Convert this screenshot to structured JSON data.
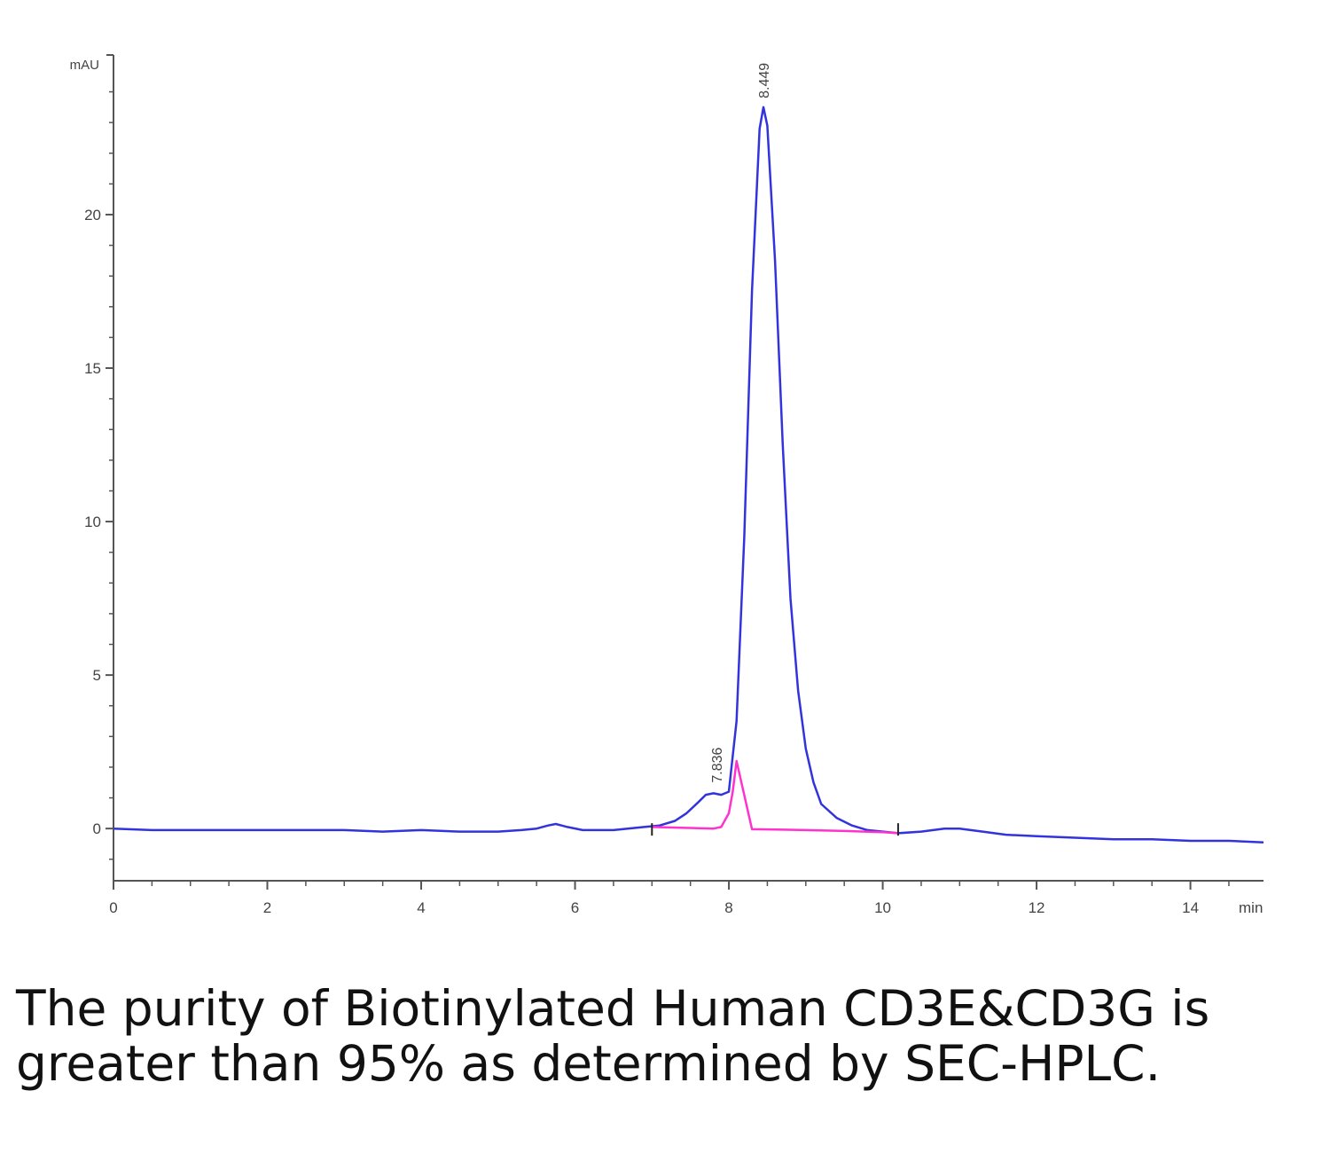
{
  "chart_data": {
    "type": "line",
    "title": "",
    "xlabel": "",
    "ylabel": "",
    "x_unit": "min",
    "y_unit": "mAU",
    "xlim": [
      0,
      14.95
    ],
    "ylim": [
      -1.7,
      25.2
    ],
    "x_ticks": [
      "0",
      "2",
      "4",
      "6",
      "8",
      "10",
      "12",
      "14"
    ],
    "y_ticks": [
      "0",
      "5",
      "10",
      "15",
      "20"
    ],
    "grid": false,
    "legend": "none",
    "peak_labels": [
      {
        "x": 7.836,
        "y": 1.2,
        "label": "7.836"
      },
      {
        "x": 8.449,
        "y": 23.5,
        "label": "8.449"
      }
    ],
    "series": [
      {
        "color": "#3333dd",
        "x": [
          0,
          0.5,
          1,
          1.5,
          2,
          2.5,
          3,
          3.5,
          4,
          4.5,
          5,
          5.3,
          5.5,
          5.65,
          5.75,
          5.9,
          6.1,
          6.5,
          6.9,
          7.1,
          7.3,
          7.45,
          7.6,
          7.7,
          7.8,
          7.9,
          8.0,
          8.1,
          8.2,
          8.3,
          8.4,
          8.449,
          8.5,
          8.6,
          8.7,
          8.8,
          8.9,
          9.0,
          9.1,
          9.2,
          9.4,
          9.6,
          9.8,
          10.0,
          10.2,
          10.5,
          10.8,
          11.0,
          11.3,
          11.6,
          12.0,
          12.5,
          13.0,
          13.5,
          14.0,
          14.5,
          14.95
        ],
        "y": [
          0.0,
          -0.05,
          -0.05,
          -0.05,
          -0.05,
          -0.05,
          -0.05,
          -0.1,
          -0.05,
          -0.1,
          -0.1,
          -0.05,
          0.0,
          0.1,
          0.15,
          0.05,
          -0.05,
          -0.05,
          0.05,
          0.1,
          0.25,
          0.5,
          0.85,
          1.1,
          1.15,
          1.1,
          1.2,
          3.5,
          9.5,
          17.5,
          22.8,
          23.5,
          22.9,
          18.5,
          12.5,
          7.5,
          4.5,
          2.6,
          1.5,
          0.8,
          0.35,
          0.1,
          -0.05,
          -0.1,
          -0.15,
          -0.1,
          0.0,
          0.0,
          -0.1,
          -0.2,
          -0.25,
          -0.3,
          -0.35,
          -0.35,
          -0.4,
          -0.4,
          -0.45
        ]
      },
      {
        "color": "#ff33cc",
        "x": [
          7.0,
          7.5,
          7.8,
          7.9,
          8.0,
          8.05,
          8.1,
          8.3,
          8.6,
          9.0,
          9.5,
          10.0,
          10.2
        ],
        "y": [
          0.05,
          0.02,
          0.0,
          0.05,
          0.5,
          1.2,
          2.2,
          -0.02,
          -0.03,
          -0.05,
          -0.08,
          -0.12,
          -0.15
        ]
      }
    ],
    "integration_marks": [
      7.0,
      10.2
    ]
  },
  "caption": "The purity of Biotinylated Human CD3E&CD3G is greater than 95% as determined by SEC-HPLC."
}
